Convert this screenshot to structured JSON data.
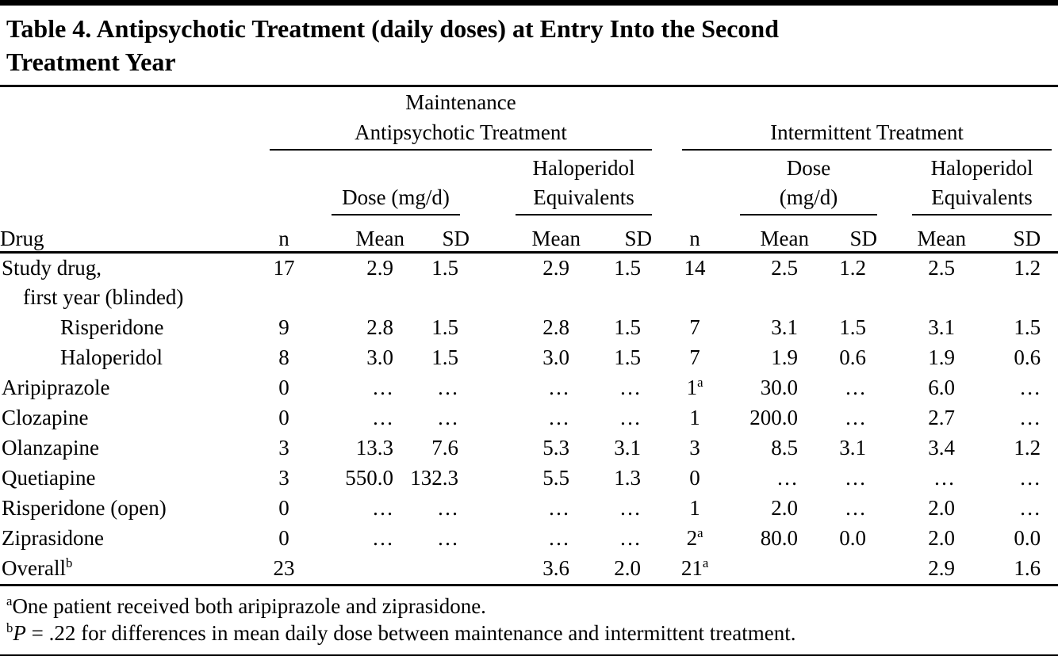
{
  "title": "Table 4. Antipsychotic Treatment (daily doses) at Entry Into the Second\nTreatment Year",
  "table": {
    "groups": {
      "maintenance": "Maintenance\nAntipsychotic Treatment",
      "intermittent": "Intermittent Treatment"
    },
    "subheaders": {
      "dose_maintenance": "Dose (mg/d)",
      "haloperidol_equivalents": "Haloperidol\nEquivalents",
      "dose_intermittent": "Dose\n(mg/d)"
    },
    "columns": {
      "drug": "Drug",
      "n": "n",
      "mean": "Mean",
      "sd": "SD"
    },
    "rows": [
      {
        "label": "Study drug,\n    first year (blinded)",
        "indent": 0,
        "cells": [
          "17",
          "2.9",
          "1.5",
          "2.9",
          "1.5",
          "14",
          "2.5",
          "1.2",
          "2.5",
          "1.2"
        ]
      },
      {
        "label": "Risperidone",
        "indent": 2,
        "cells": [
          "9",
          "2.8",
          "1.5",
          "2.8",
          "1.5",
          "7",
          "3.1",
          "1.5",
          "3.1",
          "1.5"
        ]
      },
      {
        "label": "Haloperidol",
        "indent": 2,
        "cells": [
          "8",
          "3.0",
          "1.5",
          "3.0",
          "1.5",
          "7",
          "1.9",
          "0.6",
          "1.9",
          "0.6"
        ]
      },
      {
        "label": "Aripiprazole",
        "indent": 0,
        "cells": [
          "0",
          "…",
          "…",
          "…",
          "…",
          "1^a",
          "30.0",
          "…",
          "6.0",
          "…"
        ]
      },
      {
        "label": "Clozapine",
        "indent": 0,
        "cells": [
          "0",
          "…",
          "…",
          "…",
          "…",
          "1",
          "200.0",
          "…",
          "2.7",
          "…"
        ]
      },
      {
        "label": "Olanzapine",
        "indent": 0,
        "cells": [
          "3",
          "13.3",
          "7.6",
          "5.3",
          "3.1",
          "3",
          "8.5",
          "3.1",
          "3.4",
          "1.2"
        ]
      },
      {
        "label": "Quetiapine",
        "indent": 0,
        "cells": [
          "3",
          "550.0",
          "132.3",
          "5.5",
          "1.3",
          "0",
          "…",
          "…",
          "…",
          "…"
        ]
      },
      {
        "label": "Risperidone (open)",
        "indent": 0,
        "cells": [
          "0",
          "…",
          "…",
          "…",
          "…",
          "1",
          "2.0",
          "…",
          "2.0",
          "…"
        ]
      },
      {
        "label": "Ziprasidone",
        "indent": 0,
        "cells": [
          "0",
          "…",
          "…",
          "…",
          "…",
          "2^a",
          "80.0",
          "0.0",
          "2.0",
          "0.0"
        ]
      },
      {
        "label": "Overall^b",
        "indent": 0,
        "cells": [
          "23",
          "",
          "",
          "3.6",
          "2.0",
          "21^a",
          "",
          "",
          "2.9",
          "1.6"
        ]
      }
    ]
  },
  "footnotes": [
    {
      "marker": "a",
      "italic": "",
      "text": "One patient received both aripiprazole and ziprasidone."
    },
    {
      "marker": "b",
      "italic": "P",
      "text": " = .22 for differences in mean daily dose between maintenance and intermittent treatment."
    }
  ]
}
